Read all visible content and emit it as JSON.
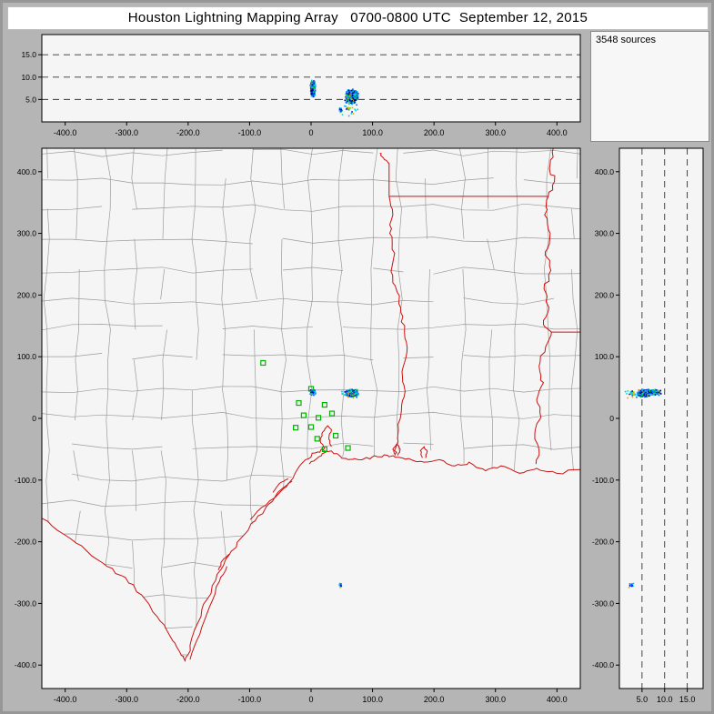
{
  "title": "Houston Lightning Mapping Array   0700-0800 UTC  September 12, 2015",
  "sources_label": "3548 sources",
  "colors": {
    "background": "#b5b5b5",
    "panel_bg": "#f5f5f5",
    "border": "#000000",
    "county": "#9b9b9b",
    "state": "#cc1111",
    "station": "#00b400",
    "grid_dash": "#333333"
  },
  "chart_data": {
    "type": "scatter",
    "title": "Houston Lightning Mapping Array 0700-0800 UTC September 12, 2015",
    "total_sources": 3548,
    "panels": [
      {
        "id": "altitude-vs-east-west",
        "x_range_km": [
          -438,
          438
        ],
        "alt_range_km": [
          0,
          19.5
        ],
        "grid": "dashed horizontal lines at 5, 10, 15 km"
      },
      {
        "id": "plan-view-map",
        "x_range_km": [
          -438,
          438
        ],
        "y_range_km": [
          -438,
          438
        ],
        "map": "SE Texas / Louisiana county and state boundaries with Gulf coastline"
      },
      {
        "id": "altitude-vs-north-south",
        "alt_range_km": [
          0,
          18.5
        ],
        "y_range_km": [
          -438,
          438
        ],
        "grid": "dashed vertical lines at 5, 10, 15 km"
      }
    ],
    "ew_ticks": {
      "values": [
        -400,
        -300,
        -200,
        -100,
        0,
        100,
        200,
        300,
        400
      ],
      "labels": [
        "-400.0",
        "-300.0",
        "-200.0",
        "-100.0",
        "0",
        "100.0",
        "200.0",
        "300.0",
        "400.0"
      ]
    },
    "ns_ticks": {
      "values": [
        400,
        300,
        200,
        100,
        0,
        -100,
        -200,
        -300,
        -400
      ],
      "labels": [
        "400.0",
        "300.0",
        "200.0",
        "100.0",
        "0",
        "-100.0",
        "-200.0",
        "-300.0",
        "-400.0"
      ]
    },
    "alt_ticks": {
      "values": [
        5,
        10,
        15
      ],
      "labels": [
        "5.0",
        "10.0",
        "15.0"
      ]
    },
    "stations": [
      [
        -78,
        90
      ],
      [
        0,
        48
      ],
      [
        -20,
        25
      ],
      [
        -12,
        5
      ],
      [
        -25,
        -15
      ],
      [
        0,
        -14
      ],
      [
        12,
        1
      ],
      [
        22,
        22
      ],
      [
        34,
        8
      ],
      [
        10,
        -33
      ],
      [
        22,
        -50
      ],
      [
        40,
        -28
      ],
      [
        60,
        -48
      ]
    ],
    "cells": [
      {
        "n": 360,
        "ew": [
          3,
          5
        ],
        "ns": [
          42,
          5
        ],
        "alt": [
          7.4,
          2.4
        ]
      },
      {
        "n": 760,
        "ew": [
          66,
          12
        ],
        "ns": [
          41,
          7
        ],
        "alt": [
          5.6,
          1.8
        ]
      },
      {
        "n": 25,
        "ew": [
          62,
          18
        ],
        "ns": [
          40,
          10
        ],
        "alt": [
          3.2,
          2.2
        ]
      },
      {
        "n": 12,
        "ew": [
          47,
          3
        ],
        "ns": [
          -271,
          4
        ],
        "alt": [
          2.6,
          1.0
        ]
      }
    ],
    "palette": [
      [
        "#000080",
        0.12
      ],
      [
        "#0000ee",
        0.22
      ],
      [
        "#0066ff",
        0.16
      ],
      [
        "#00bbff",
        0.22
      ],
      [
        "#00ddcc",
        0.1
      ],
      [
        "#00cc33",
        0.1
      ],
      [
        "#99cc00",
        0.05
      ],
      [
        "#ff9900",
        0.03
      ]
    ]
  }
}
